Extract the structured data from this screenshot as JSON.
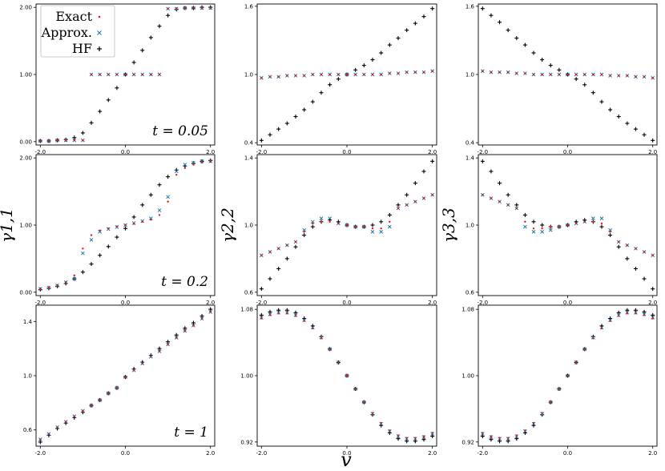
{
  "figure": {
    "xlabel": "v",
    "row_labels": [
      "",
      "γ1,1",
      ""
    ],
    "col_labels_row2": [
      "γ1,1",
      "γ2,2",
      "γ3,3"
    ]
  },
  "legend": {
    "entries": [
      {
        "label": "Exact",
        "marker": "dot",
        "color": "#e8141c"
      },
      {
        "label": "Approx.",
        "marker": "x",
        "color": "#1f77b4"
      },
      {
        "label": "HF",
        "marker": "plus",
        "color": "#000000"
      }
    ]
  },
  "colors": {
    "exact": "#e8141c",
    "approx": "#1f77b4",
    "hf": "#000000"
  },
  "chart_data": [
    {
      "type": "scatter",
      "row": 0,
      "col": 0,
      "ylabel": "",
      "annotation": "t = 0.05",
      "xlim": [
        -2.1,
        2.1
      ],
      "ylim": [
        -0.05,
        2.05
      ],
      "xticks": [
        "-2.0",
        "0.0",
        "2.0"
      ],
      "yticks": [
        "0.00",
        "1.00",
        "2.00"
      ],
      "ytick_values": [
        0,
        1,
        2
      ],
      "x": [
        -2.0,
        -1.8,
        -1.6,
        -1.4,
        -1.2,
        -1.0,
        -0.8,
        -0.6,
        -0.4,
        -0.2,
        0.0,
        0.2,
        0.4,
        0.6,
        0.8,
        1.0,
        1.2,
        1.4,
        1.6,
        1.8,
        2.0
      ],
      "series": [
        {
          "name": "Exact",
          "values": [
            0.01,
            0.01,
            0.02,
            0.02,
            0.02,
            0.02,
            1.0,
            1.0,
            1.0,
            1.0,
            1.0,
            1.0,
            1.0,
            1.0,
            1.0,
            1.98,
            1.98,
            1.99,
            1.99,
            1.99,
            1.99
          ]
        },
        {
          "name": "Approx.",
          "values": [
            0.01,
            0.01,
            0.02,
            0.02,
            0.02,
            0.02,
            1.0,
            1.0,
            1.0,
            1.0,
            1.0,
            1.0,
            1.0,
            1.0,
            1.0,
            1.98,
            1.98,
            1.99,
            1.99,
            1.99,
            1.99
          ]
        },
        {
          "name": "HF",
          "values": [
            0.01,
            0.01,
            0.02,
            0.03,
            0.06,
            0.13,
            0.28,
            0.45,
            0.62,
            0.8,
            1.0,
            1.18,
            1.36,
            1.55,
            1.72,
            1.88,
            1.97,
            1.99,
            1.99,
            2.0,
            2.0
          ]
        }
      ]
    },
    {
      "type": "scatter",
      "row": 0,
      "col": 1,
      "ylabel": "",
      "xlim": [
        -2.1,
        2.1
      ],
      "ylim": [
        0.38,
        1.62
      ],
      "xticks": [
        "-2.0",
        "0.0",
        "2.0"
      ],
      "yticks": [
        "0.4",
        "1.0",
        "1.6"
      ],
      "ytick_values": [
        0.4,
        1.0,
        1.6
      ],
      "x": [
        -2.0,
        -1.8,
        -1.6,
        -1.4,
        -1.2,
        -1.0,
        -0.8,
        -0.6,
        -0.4,
        -0.2,
        0.0,
        0.2,
        0.4,
        0.6,
        0.8,
        1.0,
        1.2,
        1.4,
        1.6,
        1.8,
        2.0
      ],
      "series": [
        {
          "name": "Exact",
          "values": [
            0.97,
            0.98,
            0.98,
            0.99,
            0.99,
            0.99,
            1.0,
            1.0,
            1.0,
            1.0,
            1.0,
            1.0,
            1.0,
            1.0,
            1.0,
            1.01,
            1.01,
            1.02,
            1.02,
            1.02,
            1.03
          ]
        },
        {
          "name": "Approx.",
          "values": [
            0.97,
            0.98,
            0.98,
            0.99,
            0.99,
            0.99,
            1.0,
            1.0,
            1.0,
            1.0,
            1.0,
            1.0,
            1.0,
            1.0,
            1.0,
            1.01,
            1.01,
            1.02,
            1.02,
            1.02,
            1.03
          ]
        },
        {
          "name": "HF",
          "values": [
            0.42,
            0.47,
            0.52,
            0.57,
            0.63,
            0.69,
            0.76,
            0.84,
            0.91,
            0.96,
            1.0,
            1.04,
            1.08,
            1.13,
            1.19,
            1.26,
            1.32,
            1.39,
            1.45,
            1.51,
            1.58
          ]
        }
      ]
    },
    {
      "type": "scatter",
      "row": 0,
      "col": 2,
      "ylabel": "",
      "xlim": [
        -2.1,
        2.1
      ],
      "ylim": [
        0.38,
        1.62
      ],
      "xticks": [
        "-2.0",
        "0.0",
        "2.0"
      ],
      "yticks": [
        "0.4",
        "1.0",
        "1.6"
      ],
      "ytick_values": [
        0.4,
        1.0,
        1.6
      ],
      "x": [
        -2.0,
        -1.8,
        -1.6,
        -1.4,
        -1.2,
        -1.0,
        -0.8,
        -0.6,
        -0.4,
        -0.2,
        0.0,
        0.2,
        0.4,
        0.6,
        0.8,
        1.0,
        1.2,
        1.4,
        1.6,
        1.8,
        2.0
      ],
      "series": [
        {
          "name": "Exact",
          "values": [
            1.03,
            1.02,
            1.02,
            1.02,
            1.01,
            1.01,
            1.0,
            1.0,
            1.0,
            1.0,
            1.0,
            1.0,
            1.0,
            1.0,
            1.0,
            0.99,
            0.99,
            0.99,
            0.98,
            0.98,
            0.97
          ]
        },
        {
          "name": "Approx.",
          "values": [
            1.03,
            1.02,
            1.02,
            1.02,
            1.01,
            1.01,
            1.0,
            1.0,
            1.0,
            1.0,
            1.0,
            1.0,
            1.0,
            1.0,
            1.0,
            0.99,
            0.99,
            0.99,
            0.98,
            0.98,
            0.97
          ]
        },
        {
          "name": "HF",
          "values": [
            1.58,
            1.52,
            1.46,
            1.39,
            1.32,
            1.26,
            1.19,
            1.13,
            1.08,
            1.04,
            1.0,
            0.96,
            0.91,
            0.84,
            0.76,
            0.69,
            0.63,
            0.57,
            0.52,
            0.47,
            0.42
          ]
        }
      ]
    },
    {
      "type": "scatter",
      "row": 1,
      "col": 0,
      "ylabel": "γ1,1",
      "annotation": "t = 0.2",
      "xlim": [
        -2.1,
        2.1
      ],
      "ylim": [
        -0.05,
        2.05
      ],
      "xticks": [
        "-2.0",
        "0.0",
        "2.0"
      ],
      "yticks": [
        "0.00",
        "1.00",
        "2.00"
      ],
      "ytick_values": [
        0,
        1,
        2
      ],
      "x": [
        -2.0,
        -1.8,
        -1.6,
        -1.4,
        -1.2,
        -1.0,
        -0.8,
        -0.6,
        -0.4,
        -0.2,
        0.0,
        0.2,
        0.4,
        0.6,
        0.8,
        1.0,
        1.2,
        1.4,
        1.6,
        1.8,
        2.0
      ],
      "series": [
        {
          "name": "Exact",
          "values": [
            0.05,
            0.07,
            0.1,
            0.15,
            0.25,
            0.65,
            0.85,
            0.92,
            0.95,
            0.98,
            1.0,
            1.02,
            1.05,
            1.08,
            1.15,
            1.35,
            1.75,
            1.85,
            1.9,
            1.93,
            1.95
          ]
        },
        {
          "name": "Approx.",
          "values": [
            0.05,
            0.07,
            0.1,
            0.15,
            0.2,
            0.58,
            0.78,
            0.9,
            0.94,
            0.97,
            1.0,
            1.03,
            1.06,
            1.1,
            1.22,
            1.42,
            1.8,
            1.9,
            1.93,
            1.95,
            1.95
          ]
        },
        {
          "name": "HF",
          "values": [
            0.04,
            0.06,
            0.09,
            0.13,
            0.2,
            0.3,
            0.42,
            0.55,
            0.68,
            0.82,
            0.95,
            1.12,
            1.3,
            1.45,
            1.6,
            1.72,
            1.82,
            1.88,
            1.92,
            1.95,
            1.96
          ]
        }
      ]
    },
    {
      "type": "scatter",
      "row": 1,
      "col": 1,
      "ylabel": "γ2,2",
      "xlim": [
        -2.1,
        2.1
      ],
      "ylim": [
        0.58,
        1.42
      ],
      "xticks": [
        "-2.0",
        "0.0",
        "2.0"
      ],
      "yticks": [
        "0.6",
        "1.0",
        "1.4"
      ],
      "ytick_values": [
        0.6,
        1.0,
        1.4
      ],
      "x": [
        -2.0,
        -1.8,
        -1.6,
        -1.4,
        -1.2,
        -1.0,
        -0.8,
        -0.6,
        -0.4,
        -0.2,
        0.0,
        0.2,
        0.4,
        0.6,
        0.8,
        1.0,
        1.2,
        1.4,
        1.6,
        1.8,
        2.0
      ],
      "series": [
        {
          "name": "Exact",
          "values": [
            0.82,
            0.84,
            0.86,
            0.88,
            0.9,
            0.96,
            1.01,
            1.02,
            1.02,
            1.01,
            1.0,
            0.99,
            0.99,
            0.98,
            0.98,
            1.02,
            1.1,
            1.12,
            1.14,
            1.16,
            1.18
          ]
        },
        {
          "name": "Approx.",
          "values": [
            0.82,
            0.84,
            0.86,
            0.88,
            0.9,
            0.97,
            1.02,
            1.04,
            1.04,
            1.01,
            1.0,
            0.99,
            0.99,
            0.96,
            0.96,
            0.99,
            1.1,
            1.12,
            1.14,
            1.16,
            1.18
          ]
        },
        {
          "name": "HF",
          "values": [
            0.62,
            0.68,
            0.74,
            0.8,
            0.87,
            0.94,
            0.99,
            1.02,
            1.03,
            1.02,
            1.0,
            0.99,
            0.99,
            1.0,
            1.02,
            1.06,
            1.12,
            1.18,
            1.25,
            1.32,
            1.38
          ]
        }
      ]
    },
    {
      "type": "scatter",
      "row": 1,
      "col": 2,
      "ylabel": "γ3,3",
      "xlim": [
        -2.1,
        2.1
      ],
      "ylim": [
        0.58,
        1.42
      ],
      "xticks": [
        "-2.0",
        "0.0",
        "2.0"
      ],
      "yticks": [
        "0.6",
        "1.0",
        "1.4"
      ],
      "ytick_values": [
        0.6,
        1.0,
        1.4
      ],
      "x": [
        -2.0,
        -1.8,
        -1.6,
        -1.4,
        -1.2,
        -1.0,
        -0.8,
        -0.6,
        -0.4,
        -0.2,
        0.0,
        0.2,
        0.4,
        0.6,
        0.8,
        1.0,
        1.2,
        1.4,
        1.6,
        1.8,
        2.0
      ],
      "series": [
        {
          "name": "Exact",
          "values": [
            1.18,
            1.16,
            1.14,
            1.12,
            1.1,
            1.02,
            0.98,
            0.98,
            0.99,
            0.99,
            1.0,
            1.01,
            1.02,
            1.02,
            1.01,
            0.96,
            0.9,
            0.88,
            0.86,
            0.84,
            0.82
          ]
        },
        {
          "name": "Approx.",
          "values": [
            1.18,
            1.16,
            1.14,
            1.12,
            1.1,
            0.99,
            0.96,
            0.96,
            0.97,
            0.99,
            1.0,
            1.01,
            1.02,
            1.04,
            1.04,
            0.97,
            0.9,
            0.88,
            0.86,
            0.84,
            0.82
          ]
        },
        {
          "name": "HF",
          "values": [
            1.38,
            1.32,
            1.25,
            1.18,
            1.12,
            1.06,
            1.02,
            1.0,
            0.99,
            0.99,
            1.0,
            1.02,
            1.03,
            1.02,
            0.99,
            0.94,
            0.87,
            0.8,
            0.74,
            0.68,
            0.62
          ]
        }
      ]
    },
    {
      "type": "scatter",
      "row": 2,
      "col": 0,
      "ylabel": "",
      "annotation": "t = 1",
      "xlim": [
        -2.1,
        2.1
      ],
      "ylim": [
        0.48,
        1.52
      ],
      "xticks": [
        "-2.0",
        "0.0",
        "2.0"
      ],
      "yticks": [
        "0.6",
        "1.0",
        "1.4"
      ],
      "ytick_values": [
        0.6,
        1.0,
        1.4
      ],
      "x": [
        -2.0,
        -1.8,
        -1.6,
        -1.4,
        -1.2,
        -1.0,
        -0.8,
        -0.6,
        -0.4,
        -0.2,
        0.0,
        0.2,
        0.4,
        0.6,
        0.8,
        1.0,
        1.2,
        1.4,
        1.6,
        1.8,
        2.0
      ],
      "series": [
        {
          "name": "Exact",
          "values": [
            0.53,
            0.57,
            0.62,
            0.66,
            0.7,
            0.74,
            0.78,
            0.82,
            0.87,
            0.91,
            0.99,
            1.04,
            1.09,
            1.14,
            1.18,
            1.23,
            1.28,
            1.33,
            1.37,
            1.42,
            1.47
          ]
        },
        {
          "name": "Approx.",
          "values": [
            0.53,
            0.57,
            0.62,
            0.66,
            0.7,
            0.74,
            0.78,
            0.82,
            0.87,
            0.91,
            0.99,
            1.04,
            1.09,
            1.14,
            1.18,
            1.23,
            1.28,
            1.33,
            1.37,
            1.42,
            1.47
          ]
        },
        {
          "name": "HF",
          "values": [
            0.51,
            0.56,
            0.61,
            0.65,
            0.69,
            0.73,
            0.78,
            0.82,
            0.87,
            0.91,
            0.99,
            1.05,
            1.1,
            1.15,
            1.2,
            1.25,
            1.3,
            1.35,
            1.39,
            1.44,
            1.49
          ]
        }
      ]
    },
    {
      "type": "scatter",
      "row": 2,
      "col": 1,
      "ylabel": "",
      "xlim": [
        -2.1,
        2.1
      ],
      "ylim": [
        0.915,
        1.085
      ],
      "xticks": [
        "-2.0",
        "0.0",
        "2.0"
      ],
      "yticks": [
        "0.92",
        "1.00",
        "1.08"
      ],
      "ytick_values": [
        0.92,
        1.0,
        1.08
      ],
      "x": [
        -2.0,
        -1.8,
        -1.6,
        -1.4,
        -1.2,
        -1.0,
        -0.8,
        -0.6,
        -0.4,
        -0.2,
        0.0,
        0.2,
        0.4,
        0.6,
        0.8,
        1.0,
        1.2,
        1.4,
        1.6,
        1.8,
        2.0
      ],
      "series": [
        {
          "name": "Exact",
          "values": [
            1.069,
            1.073,
            1.075,
            1.075,
            1.072,
            1.066,
            1.057,
            1.045,
            1.031,
            1.016,
            1.0,
            0.984,
            0.969,
            0.955,
            0.943,
            0.934,
            0.928,
            0.925,
            0.925,
            0.927,
            0.931
          ]
        },
        {
          "name": "Approx.",
          "values": [
            1.07,
            1.074,
            1.076,
            1.076,
            1.073,
            1.067,
            1.058,
            1.046,
            1.032,
            1.016,
            1.0,
            0.984,
            0.968,
            0.954,
            0.942,
            0.933,
            0.927,
            0.924,
            0.924,
            0.926,
            0.93
          ]
        },
        {
          "name": "HF",
          "values": [
            1.073,
            1.077,
            1.079,
            1.079,
            1.076,
            1.069,
            1.06,
            1.047,
            1.032,
            1.016,
            1.0,
            0.984,
            0.968,
            0.953,
            0.94,
            0.931,
            0.924,
            0.921,
            0.921,
            0.923,
            0.927
          ]
        }
      ]
    },
    {
      "type": "scatter",
      "row": 2,
      "col": 2,
      "ylabel": "",
      "xlim": [
        -2.1,
        2.1
      ],
      "ylim": [
        0.915,
        1.085
      ],
      "xticks": [
        "-2.0",
        "0.0",
        "2.0"
      ],
      "yticks": [
        "0.92",
        "1.00",
        "1.08"
      ],
      "ytick_values": [
        0.92,
        1.0,
        1.08
      ],
      "x": [
        -2.0,
        -1.8,
        -1.6,
        -1.4,
        -1.2,
        -1.0,
        -0.8,
        -0.6,
        -0.4,
        -0.2,
        0.0,
        0.2,
        0.4,
        0.6,
        0.8,
        1.0,
        1.2,
        1.4,
        1.6,
        1.8,
        2.0
      ],
      "series": [
        {
          "name": "Exact",
          "values": [
            0.931,
            0.927,
            0.925,
            0.925,
            0.928,
            0.934,
            0.943,
            0.955,
            0.969,
            0.984,
            1.0,
            1.016,
            1.031,
            1.045,
            1.057,
            1.066,
            1.072,
            1.075,
            1.075,
            1.073,
            1.069
          ]
        },
        {
          "name": "Approx.",
          "values": [
            0.93,
            0.926,
            0.924,
            0.924,
            0.927,
            0.933,
            0.942,
            0.954,
            0.968,
            0.984,
            1.0,
            1.016,
            1.032,
            1.046,
            1.058,
            1.067,
            1.073,
            1.076,
            1.076,
            1.074,
            1.07
          ]
        },
        {
          "name": "HF",
          "values": [
            0.927,
            0.923,
            0.921,
            0.921,
            0.924,
            0.931,
            0.94,
            0.953,
            0.968,
            0.984,
            1.0,
            1.016,
            1.032,
            1.047,
            1.06,
            1.069,
            1.076,
            1.079,
            1.079,
            1.077,
            1.073
          ]
        }
      ]
    }
  ]
}
